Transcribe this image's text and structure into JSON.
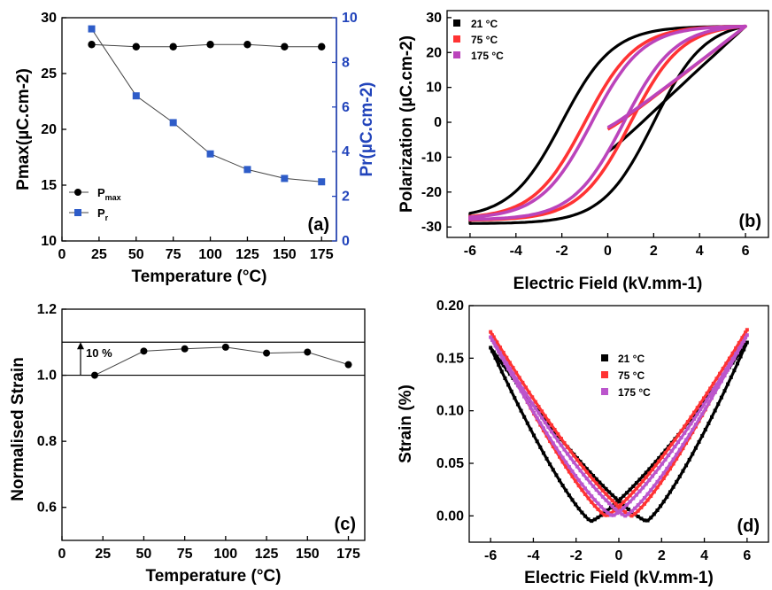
{
  "chart_data": [
    {
      "panel": "(a)",
      "type": "line",
      "xlabel": "Temperature (°C)",
      "ylabel": "Pmax(µC.cm-2)",
      "ylabel_right": "Pr(µC.cm-2)",
      "xlim": [
        0,
        185
      ],
      "ylim": [
        10,
        30
      ],
      "ylim_right": [
        0,
        10
      ],
      "xticks": [
        0,
        25,
        50,
        75,
        100,
        125,
        150,
        175
      ],
      "yticks": [
        10,
        15,
        20,
        25,
        30
      ],
      "yticks_right": [
        0,
        2,
        4,
        6,
        8,
        10
      ],
      "legend_position": "bottom-left",
      "x": [
        20,
        50,
        75,
        100,
        125,
        150,
        175
      ],
      "series": [
        {
          "name": "Pmax",
          "name_main": "P",
          "name_sub": "max",
          "axis": "left",
          "marker": "circle",
          "color": "#000000",
          "values": [
            27.6,
            27.4,
            27.4,
            27.6,
            27.6,
            27.4,
            27.4
          ]
        },
        {
          "name": "Pr",
          "name_main": "P",
          "name_sub": "r",
          "axis": "right",
          "marker": "square",
          "color": "#2e5cc8",
          "values": [
            9.5,
            6.5,
            5.3,
            3.9,
            3.2,
            2.8,
            2.65
          ]
        }
      ]
    },
    {
      "panel": "(b)",
      "type": "line",
      "xlabel": "Electric Field (kV.mm-1)",
      "ylabel": "Polarization (µC.cm-2)",
      "xlim": [
        -7,
        7
      ],
      "ylim": [
        -33,
        32
      ],
      "xticks": [
        -6,
        -4,
        -2,
        0,
        2,
        4,
        6
      ],
      "yticks": [
        -30,
        -20,
        -10,
        0,
        10,
        20,
        30
      ],
      "legend_position": "top-left",
      "series": [
        {
          "name": "21 °C",
          "color": "#000000",
          "Ps": 27.5,
          "Pr": 10.5,
          "Ec": 2.0,
          "P0": -8.5,
          "kink": 1
        },
        {
          "name": "75 °C",
          "color": "#ff3333",
          "Ps": 27.5,
          "Pr": 5.0,
          "Ec": 1.0,
          "P0": -2.0,
          "kink": 0.5
        },
        {
          "name": "175 °C",
          "color": "#bb44bb",
          "Ps": 27.5,
          "Pr": 3.5,
          "Ec": 0.7,
          "P0": -1.5,
          "kink": 0.4
        }
      ]
    },
    {
      "panel": "(c)",
      "type": "line",
      "xlabel": "Temperature (°C)",
      "ylabel": "Normalised Strain",
      "xlim": [
        0,
        185
      ],
      "ylim": [
        0.5,
        1.2
      ],
      "xticks": [
        0,
        25,
        50,
        75,
        100,
        125,
        150,
        175
      ],
      "yticks": [
        0.6,
        0.8,
        1.0,
        1.2
      ],
      "annotation": "10 %",
      "reference_lines": [
        1.0,
        1.1
      ],
      "x": [
        20,
        50,
        75,
        100,
        125,
        150,
        175
      ],
      "series": [
        {
          "marker": "circle",
          "color": "#000000",
          "values": [
            1.0,
            1.073,
            1.08,
            1.085,
            1.067,
            1.07,
            1.032
          ]
        }
      ]
    },
    {
      "panel": "(d)",
      "type": "scatter",
      "xlabel": "Electric Field (kV.mm-1)",
      "ylabel": "Strain (%)",
      "xlim": [
        -7,
        7
      ],
      "ylim": [
        -0.025,
        0.2
      ],
      "xticks": [
        -6,
        -4,
        -2,
        0,
        2,
        4,
        6
      ],
      "yticks": [
        0.0,
        0.05,
        0.1,
        0.15,
        0.2
      ],
      "legend_position": "center",
      "series": [
        {
          "name": "21 °C",
          "color": "#000000",
          "Smax_left": 0.16,
          "Smax_right": 0.165,
          "Emin_up": -1.3,
          "Smin_up": -0.005,
          "Emin_dn": 1.3,
          "Smin_dn": -0.005
        },
        {
          "name": "75 °C",
          "color": "#ff3333",
          "Smax_left": 0.175,
          "Smax_right": 0.177,
          "Emin_up": -0.6,
          "Smin_up": 0.0,
          "Emin_dn": 0.6,
          "Smin_dn": 0.0
        },
        {
          "name": "175 °C",
          "color": "#bb55cc",
          "Smax_left": 0.17,
          "Smax_right": 0.172,
          "Emin_up": -0.3,
          "Smin_up": 0.0,
          "Emin_dn": 0.3,
          "Smin_dn": 0.0
        }
      ]
    }
  ]
}
